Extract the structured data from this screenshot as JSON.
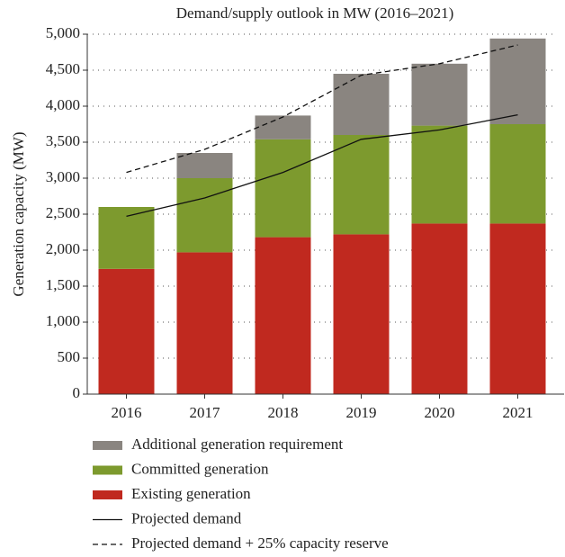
{
  "chart_data": {
    "type": "stacked_bar_line",
    "title": "Demand/supply outlook in MW (2016–2021)",
    "y_label": "Generation capacity (MW)",
    "categories": [
      "2016",
      "2017",
      "2018",
      "2019",
      "2020",
      "2021"
    ],
    "series": [
      {
        "name": "Existing generation",
        "color": "#c0291f",
        "values": [
          1740,
          1970,
          2180,
          2220,
          2370,
          2370
        ]
      },
      {
        "name": "Committed generation",
        "color": "#7d9a2e",
        "values": [
          860,
          1030,
          1360,
          1380,
          1360,
          1380
        ]
      },
      {
        "name": "Additional generation requirement",
        "color": "#8a8580",
        "values": [
          0,
          350,
          330,
          850,
          860,
          1190
        ]
      }
    ],
    "lines": [
      {
        "name": "Projected demand",
        "color": "#111111",
        "dashed": false,
        "values": [
          2470,
          2725,
          3080,
          3540,
          3670,
          3880
        ]
      },
      {
        "name": "Projected demand + 25% capacity reserve",
        "color": "#111111",
        "dashed": true,
        "values": [
          3080,
          3400,
          3850,
          4430,
          4590,
          4850
        ]
      }
    ],
    "ylim": [
      0,
      5000
    ],
    "yticks": [
      0,
      500,
      {
        "value": 1000,
        "label": "1,000"
      },
      {
        "value": 1500,
        "label": "1,500"
      },
      {
        "value": 2000,
        "label": "2,000"
      },
      {
        "value": 2500,
        "label": "2,500"
      },
      {
        "value": 3000,
        "label": "3,000"
      },
      {
        "value": 3500,
        "label": "3,500"
      },
      {
        "value": 4000,
        "label": "4,000"
      },
      {
        "value": 4500,
        "label": "4,500"
      },
      {
        "value": 5000,
        "label": "5,000"
      }
    ],
    "grid": true
  }
}
